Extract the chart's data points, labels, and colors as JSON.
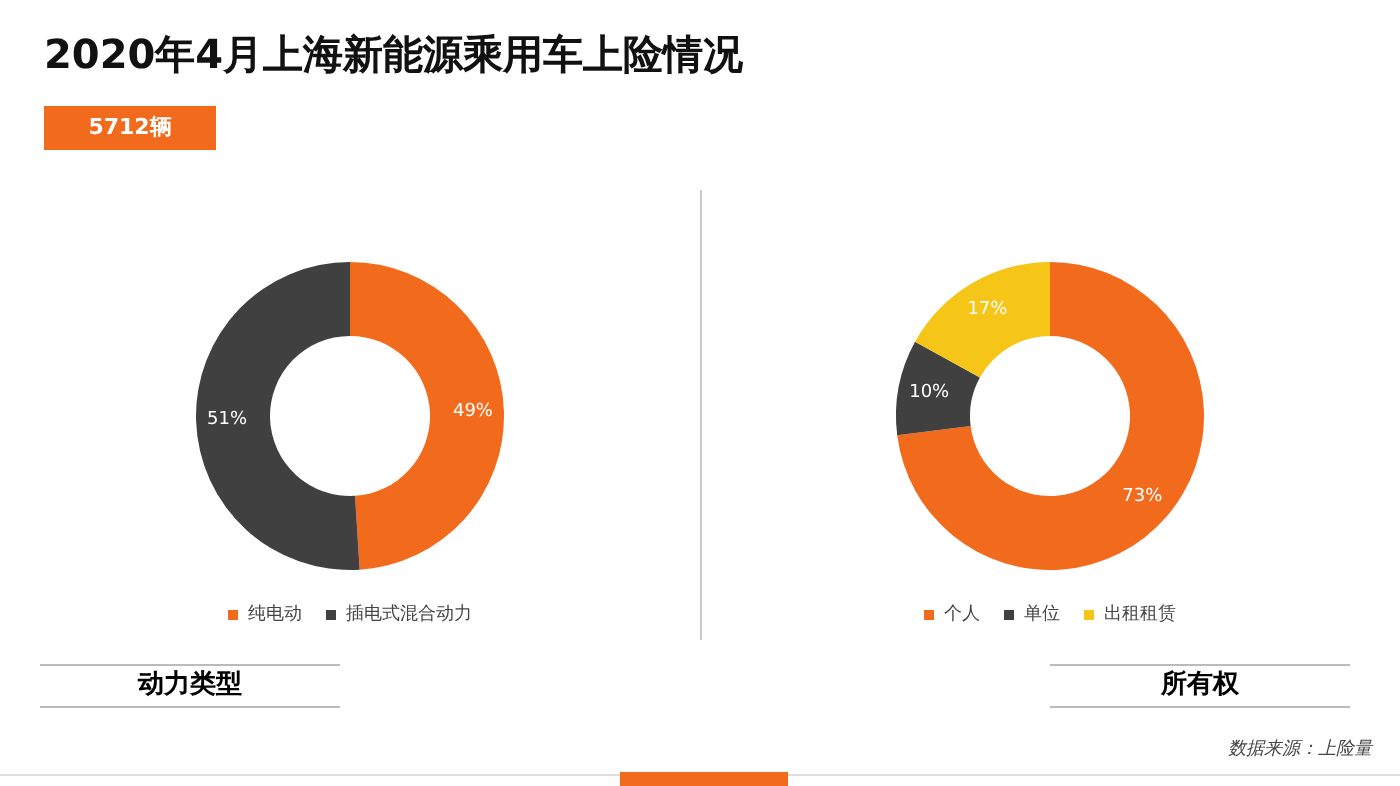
{
  "chart_data": [
    {
      "type": "donut",
      "title": "2020年4月上海新能源乘用车上险情况",
      "subtitle": "5712辆",
      "xlabel": "动力类型",
      "categories": [
        "纯电动",
        "插电式混合动力"
      ],
      "values": [
        49,
        51
      ],
      "colors": [
        "#f26b1d",
        "#404040"
      ],
      "value_labels": [
        "49%",
        "51%"
      ],
      "legend": "bottom"
    },
    {
      "type": "donut",
      "xlabel": "所有权",
      "categories": [
        "个人",
        "单位",
        "出租租赁"
      ],
      "values": [
        73,
        10,
        17
      ],
      "colors": [
        "#f26b1d",
        "#404040",
        "#f5c518"
      ],
      "value_labels": [
        "73%",
        "10%",
        "17%"
      ],
      "legend": "bottom",
      "annotations": [
        "数据来源：上险量"
      ]
    }
  ]
}
